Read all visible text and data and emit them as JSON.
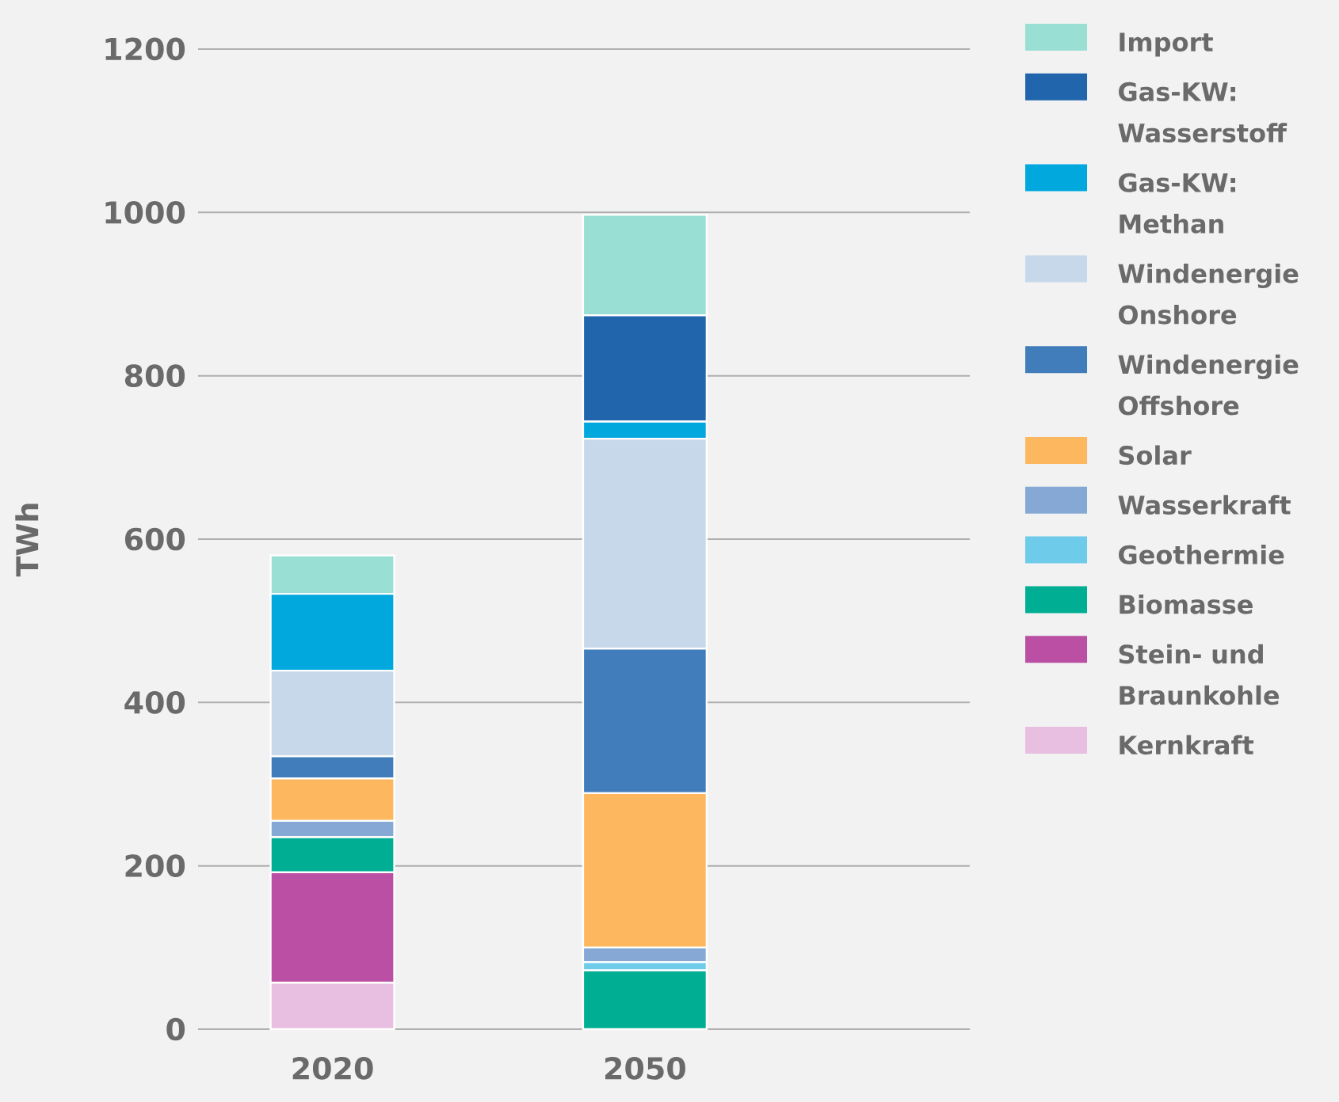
{
  "chart_data": {
    "type": "bar",
    "stacked": true,
    "ylabel": "TWh",
    "categories": [
      "2020",
      "2050"
    ],
    "series": [
      {
        "name": "Kernkraft",
        "color": "#e8bfe0",
        "values": [
          57,
          0
        ]
      },
      {
        "name": "Stein- und Braunkohle",
        "color": "#bb4fa3",
        "values": [
          135,
          0
        ]
      },
      {
        "name": "Biomasse",
        "color": "#00ae93",
        "values": [
          43,
          72
        ]
      },
      {
        "name": "Geothermie",
        "color": "#6ecbea",
        "values": [
          0,
          10
        ]
      },
      {
        "name": "Wasserkraft",
        "color": "#85a9d4",
        "values": [
          20,
          18
        ]
      },
      {
        "name": "Solar",
        "color": "#fdb85f",
        "values": [
          52,
          189
        ]
      },
      {
        "name": "Windenergie Offshore",
        "color": "#417dbb",
        "values": [
          27,
          177
        ]
      },
      {
        "name": "Windenergie Onshore",
        "color": "#c6d8ea",
        "values": [
          105,
          257
        ]
      },
      {
        "name": "Gas-KW: Methan",
        "color": "#00a8de",
        "values": [
          94,
          21
        ]
      },
      {
        "name": "Gas-KW: Wasserstoff",
        "color": "#2166ad",
        "values": [
          0,
          130
        ]
      },
      {
        "name": "Import",
        "color": "#99dfd4",
        "values": [
          47,
          123
        ]
      }
    ],
    "ylim": [
      0,
      1200
    ],
    "yticks": [
      0,
      200,
      400,
      600,
      800,
      1000,
      1200
    ],
    "grid": "y",
    "legend": "top right"
  }
}
